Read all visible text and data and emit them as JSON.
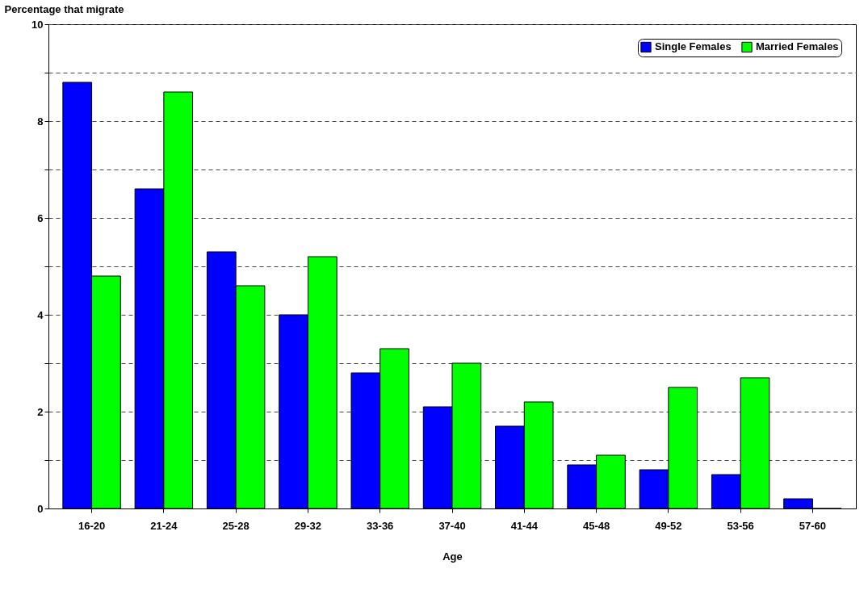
{
  "chart_data": {
    "type": "bar",
    "xlabel": "Age",
    "ylabel": "Percentage that migrate",
    "categories": [
      "16-20",
      "21-24",
      "25-28",
      "29-32",
      "33-36",
      "37-40",
      "41-44",
      "45-48",
      "49-52",
      "53-56",
      "57-60"
    ],
    "series": [
      {
        "name": "Single Females",
        "color": "#0000ff",
        "values": [
          8.8,
          6.6,
          5.3,
          4.0,
          2.8,
          2.1,
          1.7,
          0.9,
          0.8,
          0.7,
          0.2
        ]
      },
      {
        "name": "Married Females",
        "color": "#00ff00",
        "values": [
          4.8,
          8.6,
          4.6,
          5.2,
          3.3,
          3.0,
          2.2,
          1.1,
          2.5,
          2.7,
          0
        ]
      }
    ],
    "ylim": [
      0,
      10
    ],
    "yticks": [
      0,
      {
        "value": 1,
        "label": null
      },
      2,
      {
        "value": 3,
        "label": null
      },
      4,
      {
        "value": 5,
        "label": null
      },
      6,
      {
        "value": 7,
        "label": null
      },
      8,
      {
        "value": 9,
        "label": null
      },
      10
    ],
    "grid": "y",
    "legend": "top right"
  }
}
